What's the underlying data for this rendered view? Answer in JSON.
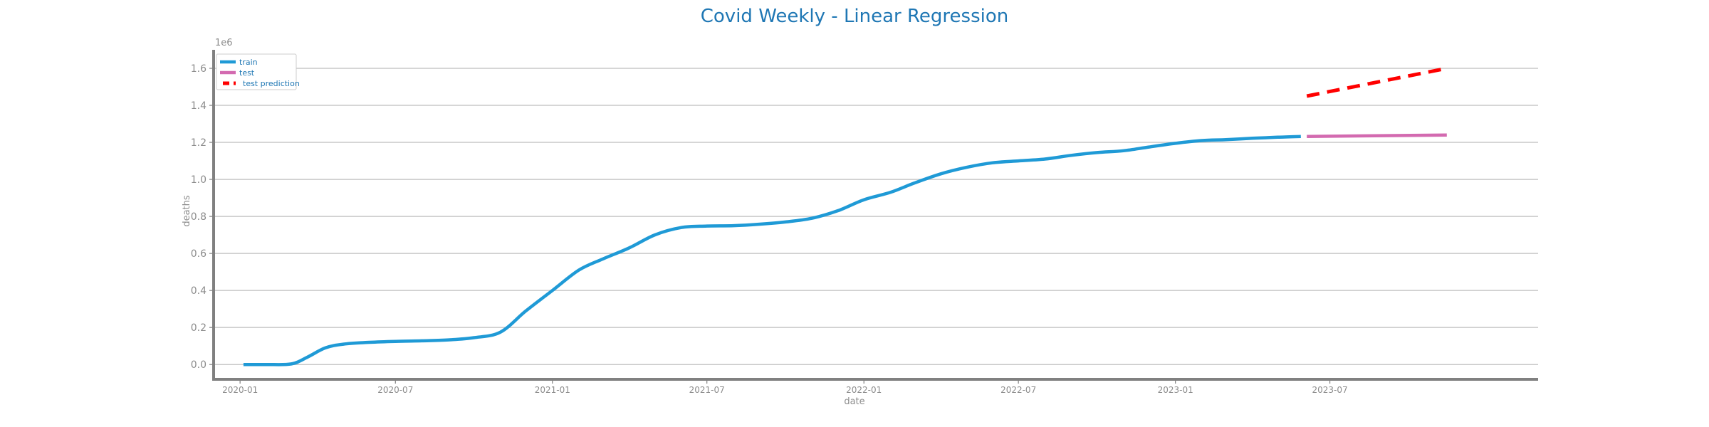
{
  "chart_data": {
    "type": "line",
    "title": "Covid Weekly - Linear Regression",
    "xlabel": "date",
    "ylabel": "deaths",
    "y_offset_label": "1e6",
    "ylim": [
      -0.08,
      1.7
    ],
    "xlim": [
      "2019-12-01",
      "2024-03-01"
    ],
    "y_ticks": [
      0.0,
      0.2,
      0.4,
      0.6,
      0.8,
      1.0,
      1.2,
      1.4,
      1.6
    ],
    "y_tick_labels": [
      "0.0",
      "0.2",
      "0.4",
      "0.6",
      "0.8",
      "1.0",
      "1.2",
      "1.4",
      "1.6"
    ],
    "x_ticks": [
      "2020-01-01",
      "2020-07-01",
      "2021-01-01",
      "2021-07-01",
      "2022-01-01",
      "2022-07-01",
      "2023-01-01",
      "2023-07-01"
    ],
    "x_tick_labels": [
      "2020-01",
      "2020-07",
      "2021-01",
      "2021-07",
      "2022-01",
      "2022-07",
      "2023-01",
      "2023-07"
    ],
    "grid": "horizontal",
    "legend_position": "top-left",
    "colors": {
      "title": "#1f77b4",
      "train": "#1f9ad6",
      "test": "#d36ab0",
      "test_prediction": "#ff0000",
      "axis": "#808080",
      "grid": "#c8c8c8",
      "legend_text": "#1f77b4"
    },
    "series": [
      {
        "name": "train",
        "style": "solid",
        "x": [
          "2020-01-05",
          "2020-02-01",
          "2020-03-01",
          "2020-03-20",
          "2020-04-10",
          "2020-05-01",
          "2020-06-01",
          "2020-07-01",
          "2020-08-01",
          "2020-09-01",
          "2020-10-01",
          "2020-11-01",
          "2020-12-01",
          "2021-01-01",
          "2021-02-01",
          "2021-03-01",
          "2021-04-01",
          "2021-05-01",
          "2021-06-01",
          "2021-07-01",
          "2021-08-01",
          "2021-09-01",
          "2021-10-01",
          "2021-11-01",
          "2021-12-01",
          "2022-01-01",
          "2022-02-01",
          "2022-03-01",
          "2022-04-01",
          "2022-05-01",
          "2022-06-01",
          "2022-07-01",
          "2022-08-01",
          "2022-09-01",
          "2022-10-01",
          "2022-11-01",
          "2022-12-01",
          "2023-01-01",
          "2023-02-01",
          "2023-03-01",
          "2023-04-01",
          "2023-05-01",
          "2023-05-28"
        ],
        "y": [
          0.0,
          0.0,
          0.003,
          0.04,
          0.09,
          0.11,
          0.12,
          0.125,
          0.128,
          0.133,
          0.145,
          0.175,
          0.29,
          0.4,
          0.51,
          0.57,
          0.63,
          0.7,
          0.74,
          0.748,
          0.75,
          0.758,
          0.77,
          0.79,
          0.83,
          0.89,
          0.93,
          0.98,
          1.03,
          1.065,
          1.09,
          1.1,
          1.11,
          1.13,
          1.145,
          1.155,
          1.175,
          1.195,
          1.21,
          1.215,
          1.222,
          1.228,
          1.232
        ]
      },
      {
        "name": "test",
        "style": "solid",
        "x": [
          "2023-06-04",
          "2023-11-15"
        ],
        "y": [
          1.232,
          1.24
        ]
      },
      {
        "name": "test prediction",
        "style": "dashed",
        "x": [
          "2023-06-04",
          "2023-11-15"
        ],
        "y": [
          1.45,
          1.6
        ]
      }
    ]
  }
}
